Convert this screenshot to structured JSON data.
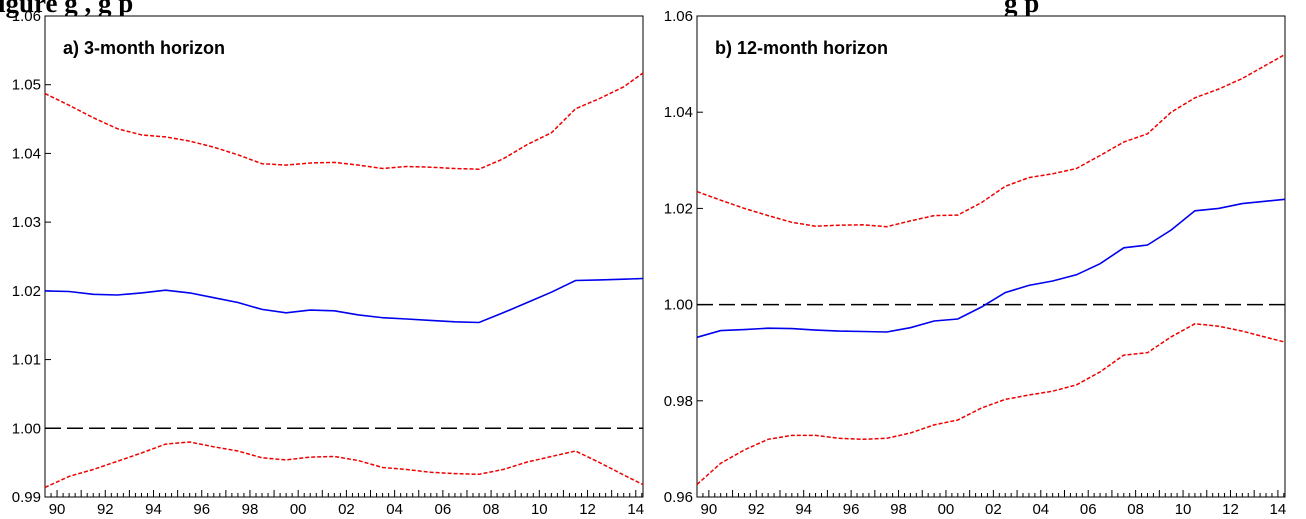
{
  "figure_title_fragments": {
    "left": "igure     g          ,             g p",
    "right": "g                    p"
  },
  "chart_data": [
    {
      "type": "line",
      "title": "a) 3-month horizon",
      "xlabel": "",
      "ylabel": "",
      "xlim": [
        1989.5,
        2014.3
      ],
      "ylim": [
        0.99,
        1.06
      ],
      "x_tick_values": [
        1990,
        1992,
        1994,
        1996,
        1998,
        2000,
        2002,
        2004,
        2006,
        2008,
        2010,
        2012,
        2014
      ],
      "x_tick_labels": [
        "90",
        "92",
        "94",
        "96",
        "98",
        "00",
        "02",
        "04",
        "06",
        "08",
        "10",
        "12",
        "14"
      ],
      "y_tick_values": [
        0.99,
        1.0,
        1.01,
        1.02,
        1.03,
        1.04,
        1.05,
        1.06
      ],
      "y_tick_labels": [
        "0.99",
        "1.00",
        "1.01",
        "1.02",
        "1.03",
        "1.04",
        "1.05",
        "1.06"
      ],
      "reference_line": 1.0,
      "grid": false,
      "legend": "none",
      "series": [
        {
          "role": "estimate",
          "color": "#0000ee",
          "style": "solid",
          "points": [
            [
              1989.5,
              1.02
            ],
            [
              1990.5,
              1.0199
            ],
            [
              1991.5,
              1.0195
            ],
            [
              1992.5,
              1.0194
            ],
            [
              1993.5,
              1.0197
            ],
            [
              1994.5,
              1.0201
            ],
            [
              1995.5,
              1.0197
            ],
            [
              1996.5,
              1.019
            ],
            [
              1997.5,
              1.0183
            ],
            [
              1998.5,
              1.0173
            ],
            [
              1999.5,
              1.0168
            ],
            [
              2000.5,
              1.0172
            ],
            [
              2001.5,
              1.0171
            ],
            [
              2002.5,
              1.0165
            ],
            [
              2003.5,
              1.0161
            ],
            [
              2004.5,
              1.0159
            ],
            [
              2005.5,
              1.0157
            ],
            [
              2006.5,
              1.0155
            ],
            [
              2007.5,
              1.0154
            ],
            [
              2008.5,
              1.0168
            ],
            [
              2009.5,
              1.0183
            ],
            [
              2010.5,
              1.0198
            ],
            [
              2011.5,
              1.0215
            ],
            [
              2012.5,
              1.0216
            ],
            [
              2013.5,
              1.0217
            ],
            [
              2014.3,
              1.0218
            ]
          ]
        },
        {
          "role": "upper band",
          "color": "#ee0000",
          "style": "dashed",
          "points": [
            [
              1989.5,
              1.0487
            ],
            [
              1990.5,
              1.047
            ],
            [
              1991.5,
              1.0452
            ],
            [
              1992.5,
              1.0436
            ],
            [
              1993.5,
              1.0427
            ],
            [
              1994.5,
              1.0424
            ],
            [
              1995.5,
              1.0418
            ],
            [
              1996.5,
              1.0409
            ],
            [
              1997.5,
              1.0398
            ],
            [
              1998.5,
              1.0385
            ],
            [
              1999.5,
              1.0383
            ],
            [
              2000.5,
              1.0386
            ],
            [
              2001.5,
              1.0387
            ],
            [
              2002.5,
              1.0383
            ],
            [
              2003.5,
              1.0378
            ],
            [
              2004.5,
              1.0381
            ],
            [
              2005.5,
              1.038
            ],
            [
              2006.5,
              1.0378
            ],
            [
              2007.5,
              1.0377
            ],
            [
              2008.5,
              1.0392
            ],
            [
              2009.5,
              1.0413
            ],
            [
              2010.5,
              1.043
            ],
            [
              2011.5,
              1.0465
            ],
            [
              2012.5,
              1.048
            ],
            [
              2013.5,
              1.0497
            ],
            [
              2014.3,
              1.0517
            ]
          ]
        },
        {
          "role": "lower band",
          "color": "#ee0000",
          "style": "dashed",
          "points": [
            [
              1989.5,
              0.9914
            ],
            [
              1990.5,
              0.993
            ],
            [
              1991.5,
              0.994
            ],
            [
              1992.5,
              0.9952
            ],
            [
              1993.5,
              0.9964
            ],
            [
              1994.5,
              0.9977
            ],
            [
              1995.5,
              0.998
            ],
            [
              1996.5,
              0.9973
            ],
            [
              1997.5,
              0.9967
            ],
            [
              1998.5,
              0.9957
            ],
            [
              1999.5,
              0.9954
            ],
            [
              2000.5,
              0.9958
            ],
            [
              2001.5,
              0.9959
            ],
            [
              2002.5,
              0.9953
            ],
            [
              2003.5,
              0.9943
            ],
            [
              2004.5,
              0.994
            ],
            [
              2005.5,
              0.9936
            ],
            [
              2006.5,
              0.9934
            ],
            [
              2007.5,
              0.9933
            ],
            [
              2008.5,
              0.994
            ],
            [
              2009.5,
              0.9951
            ],
            [
              2010.5,
              0.9959
            ],
            [
              2011.5,
              0.9967
            ],
            [
              2012.5,
              0.995
            ],
            [
              2013.5,
              0.9932
            ],
            [
              2014.3,
              0.9918
            ]
          ]
        }
      ]
    },
    {
      "type": "line",
      "title": "b) 12-month horizon",
      "xlabel": "",
      "ylabel": "",
      "xlim": [
        1989.5,
        2014.3
      ],
      "ylim": [
        0.96,
        1.06
      ],
      "x_tick_values": [
        1990,
        1992,
        1994,
        1996,
        1998,
        2000,
        2002,
        2004,
        2006,
        2008,
        2010,
        2012,
        2014
      ],
      "x_tick_labels": [
        "90",
        "92",
        "94",
        "96",
        "98",
        "00",
        "02",
        "04",
        "06",
        "08",
        "10",
        "12",
        "14"
      ],
      "y_tick_values": [
        0.96,
        0.98,
        1.0,
        1.02,
        1.04,
        1.06
      ],
      "y_tick_labels": [
        "0.96",
        "0.98",
        "1.00",
        "1.02",
        "1.04",
        "1.06"
      ],
      "reference_line": 1.0,
      "grid": false,
      "legend": "none",
      "series": [
        {
          "role": "estimate",
          "color": "#0000ee",
          "style": "solid",
          "points": [
            [
              1989.5,
              0.9932
            ],
            [
              1990.5,
              0.9946
            ],
            [
              1991.5,
              0.9948
            ],
            [
              1992.5,
              0.9951
            ],
            [
              1993.5,
              0.995
            ],
            [
              1994.5,
              0.9947
            ],
            [
              1995.5,
              0.9945
            ],
            [
              1996.5,
              0.9944
            ],
            [
              1997.5,
              0.9943
            ],
            [
              1998.5,
              0.9952
            ],
            [
              1999.5,
              0.9966
            ],
            [
              2000.5,
              0.997
            ],
            [
              2001.5,
              0.9995
            ],
            [
              2002.5,
              1.0025
            ],
            [
              2003.5,
              1.004
            ],
            [
              2004.5,
              1.0049
            ],
            [
              2005.5,
              1.0062
            ],
            [
              2006.5,
              1.0085
            ],
            [
              2007.5,
              1.0118
            ],
            [
              2008.5,
              1.0124
            ],
            [
              2009.5,
              1.0155
            ],
            [
              2010.5,
              1.0195
            ],
            [
              2011.5,
              1.02
            ],
            [
              2012.5,
              1.021
            ],
            [
              2013.5,
              1.0215
            ],
            [
              2014.3,
              1.0219
            ]
          ]
        },
        {
          "role": "upper band",
          "color": "#ee0000",
          "style": "dashed",
          "points": [
            [
              1989.5,
              1.0235
            ],
            [
              1990.5,
              1.0217
            ],
            [
              1991.5,
              1.02
            ],
            [
              1992.5,
              1.0185
            ],
            [
              1993.5,
              1.0171
            ],
            [
              1994.5,
              1.0163
            ],
            [
              1995.5,
              1.0165
            ],
            [
              1996.5,
              1.0166
            ],
            [
              1997.5,
              1.0162
            ],
            [
              1998.5,
              1.0174
            ],
            [
              1999.5,
              1.0185
            ],
            [
              2000.5,
              1.0186
            ],
            [
              2001.5,
              1.0212
            ],
            [
              2002.5,
              1.0246
            ],
            [
              2003.5,
              1.0264
            ],
            [
              2004.5,
              1.0272
            ],
            [
              2005.5,
              1.0283
            ],
            [
              2006.5,
              1.031
            ],
            [
              2007.5,
              1.0338
            ],
            [
              2008.5,
              1.0355
            ],
            [
              2009.5,
              1.04
            ],
            [
              2010.5,
              1.043
            ],
            [
              2011.5,
              1.0448
            ],
            [
              2012.5,
              1.047
            ],
            [
              2013.5,
              1.0498
            ],
            [
              2014.3,
              1.052
            ]
          ]
        },
        {
          "role": "lower band",
          "color": "#ee0000",
          "style": "dashed",
          "points": [
            [
              1989.5,
              0.9626
            ],
            [
              1990.5,
              0.967
            ],
            [
              1991.5,
              0.9698
            ],
            [
              1992.5,
              0.972
            ],
            [
              1993.5,
              0.9728
            ],
            [
              1994.5,
              0.9728
            ],
            [
              1995.5,
              0.9722
            ],
            [
              1996.5,
              0.972
            ],
            [
              1997.5,
              0.9722
            ],
            [
              1998.5,
              0.9733
            ],
            [
              1999.5,
              0.975
            ],
            [
              2000.5,
              0.976
            ],
            [
              2001.5,
              0.9785
            ],
            [
              2002.5,
              0.9803
            ],
            [
              2003.5,
              0.9812
            ],
            [
              2004.5,
              0.982
            ],
            [
              2005.5,
              0.9833
            ],
            [
              2006.5,
              0.986
            ],
            [
              2007.5,
              0.9895
            ],
            [
              2008.5,
              0.99
            ],
            [
              2009.5,
              0.9933
            ],
            [
              2010.5,
              0.996
            ],
            [
              2011.5,
              0.9955
            ],
            [
              2012.5,
              0.9945
            ],
            [
              2013.5,
              0.9932
            ],
            [
              2014.3,
              0.9922
            ]
          ]
        }
      ]
    }
  ]
}
